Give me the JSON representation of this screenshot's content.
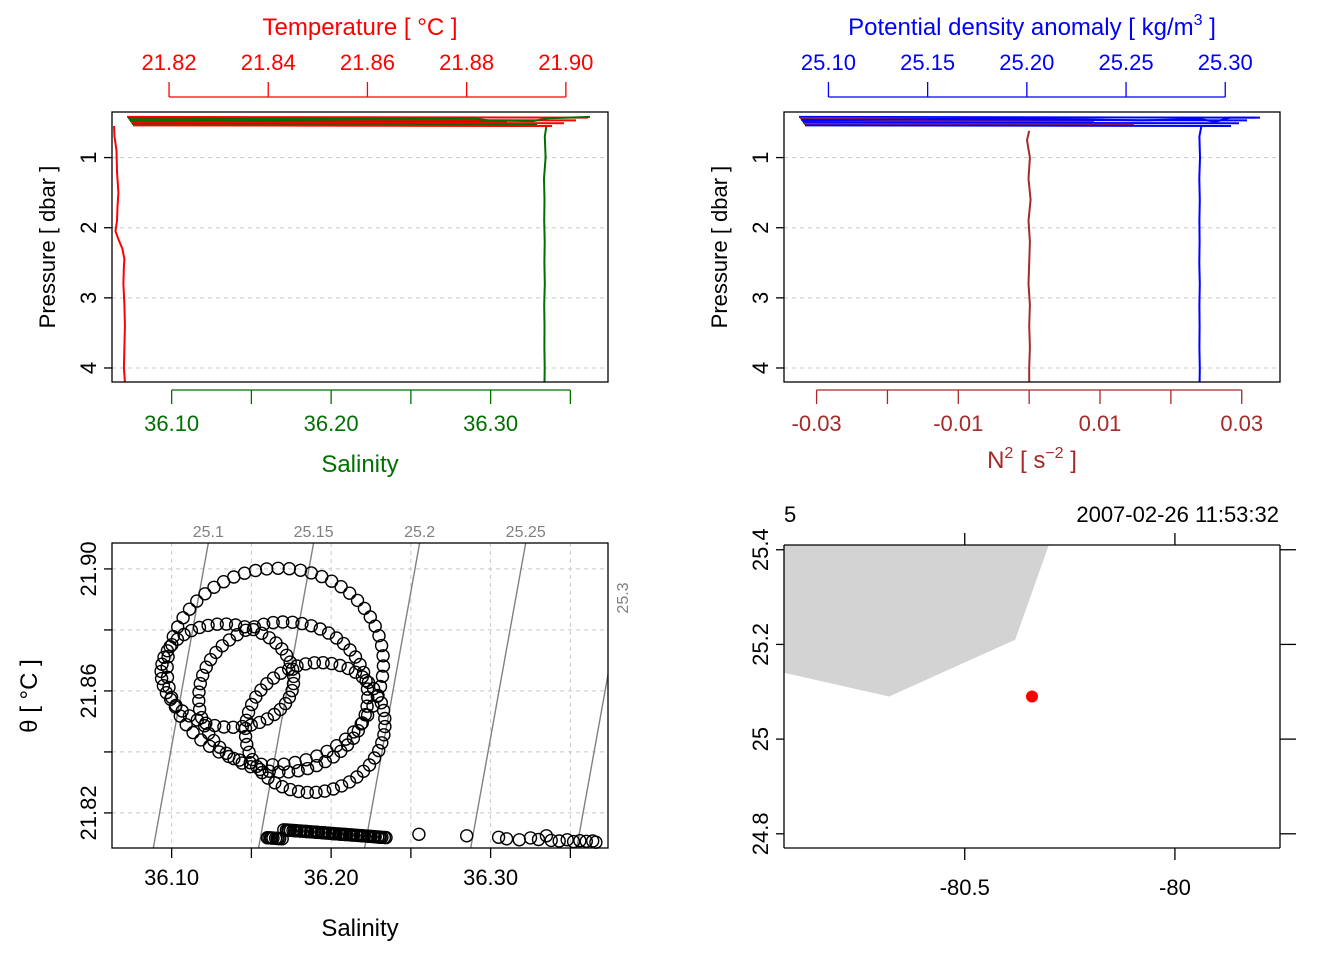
{
  "colors": {
    "temperature": "#ff0000",
    "salinity": "#007000",
    "density": "#0000ff",
    "n2": "#a52a2a",
    "grid": "#c8c8c8",
    "isopycnal": "#808080",
    "coast": "#d3d3d3",
    "station": "#ff0000"
  },
  "chart_data": [
    {
      "type": "line",
      "panel": "top-left profile",
      "ylabel": "Pressure [ dbar ]",
      "ylim": [
        4.2,
        0.35
      ],
      "yticks": [
        1,
        2,
        3,
        4
      ],
      "yticklabels": [
        "1",
        "2",
        "3",
        "4"
      ],
      "top_axis": {
        "title": "Temperature [ °C ]",
        "range": [
          21.8085,
          21.9085
        ],
        "ticks": [
          21.82,
          21.84,
          21.86,
          21.88,
          21.9
        ],
        "ticklabels": [
          "21.82",
          "21.84",
          "21.86",
          "21.88",
          "21.90"
        ]
      },
      "bottom_axis": {
        "title": "Salinity",
        "range": [
          36.0626,
          36.3736
        ],
        "ticks": [
          36.1,
          36.15,
          36.2,
          36.25,
          36.3,
          36.35
        ],
        "ticklabels": [
          "36.10",
          "",
          "36.20",
          "",
          "36.30",
          ""
        ]
      },
      "series": [
        {
          "name": "Temperature",
          "x": [
            21.8089,
            21.809,
            21.8094,
            21.8095,
            21.8098,
            21.8096,
            21.8095,
            21.8092,
            21.8097,
            21.8106,
            21.811,
            21.8109,
            21.8108,
            21.811,
            21.8111,
            21.811,
            21.8109,
            21.8111
          ],
          "y": [
            0.55,
            0.7,
            0.9,
            1.2,
            1.5,
            1.7,
            1.9,
            2.05,
            2.15,
            2.3,
            2.45,
            2.55,
            2.8,
            3.1,
            3.4,
            3.7,
            4.0,
            4.2
          ]
        },
        {
          "name": "Salinity",
          "x": [
            36.335,
            36.334,
            36.3345,
            36.3335,
            36.3338,
            36.3336,
            36.3339,
            36.3337,
            36.334,
            36.3336,
            36.3338,
            36.3337,
            36.3339,
            36.3338
          ],
          "y": [
            0.55,
            0.7,
            1.0,
            1.3,
            1.6,
            1.9,
            2.2,
            2.5,
            2.8,
            3.1,
            3.4,
            3.7,
            4.0,
            4.2
          ]
        }
      ]
    },
    {
      "type": "line",
      "panel": "top-right profile",
      "ylabel": "Pressure [ dbar ]",
      "ylim": [
        4.2,
        0.35
      ],
      "yticks": [
        1,
        2,
        3,
        4
      ],
      "yticklabels": [
        "1",
        "2",
        "3",
        "4"
      ],
      "top_axis": {
        "title": "Potential density anomaly [ kg/m",
        "title_sup": "3",
        "title_end": " ]",
        "range": [
          25.0776,
          25.3276
        ],
        "ticks": [
          25.1,
          25.15,
          25.2,
          25.25,
          25.3
        ],
        "ticklabels": [
          "25.10",
          "25.15",
          "25.20",
          "25.25",
          "25.30"
        ]
      },
      "bottom_axis": {
        "title": "N",
        "title_sup": "2",
        "title_mid": " [ s",
        "title_sup2": "−2",
        "title_end": " ]",
        "range": [
          -0.0346,
          0.0354
        ],
        "ticks": [
          -0.03,
          -0.02,
          -0.01,
          0.0,
          0.01,
          0.02,
          0.03
        ],
        "ticklabels": [
          "-0.03",
          "",
          "-0.01",
          "",
          "0.01",
          "",
          "0.03"
        ]
      },
      "series": [
        {
          "name": "Potential density anomaly",
          "x": [
            25.288,
            25.287,
            25.2873,
            25.2869,
            25.2872,
            25.287,
            25.2871,
            25.2869,
            25.2872,
            25.287,
            25.2871,
            25.287,
            25.2872,
            25.2871
          ],
          "y": [
            0.55,
            0.7,
            1.0,
            1.3,
            1.6,
            1.9,
            2.2,
            2.5,
            2.8,
            3.1,
            3.4,
            3.7,
            4.0,
            4.2
          ]
        },
        {
          "name": "N2",
          "x": [
            0.0,
            -0.0003,
            0.0001,
            -0.0001,
            0.0002,
            -0.0001,
            0.0001,
            0.0,
            -0.0001,
            0.0001,
            0.0,
            0.0001,
            0.0,
            0.0
          ],
          "y": [
            0.62,
            0.75,
            1.0,
            1.3,
            1.6,
            1.9,
            2.2,
            2.5,
            2.8,
            3.1,
            3.4,
            3.7,
            4.0,
            4.2
          ]
        }
      ]
    },
    {
      "type": "scatter",
      "panel": "TS diagram",
      "xlabel": "Salinity",
      "ylabel": "θ [ °C ]",
      "xlim": [
        36.0626,
        36.3736
      ],
      "ylim": [
        21.8085,
        21.9085
      ],
      "xticks": [
        36.1,
        36.15,
        36.2,
        36.25,
        36.3,
        36.35
      ],
      "xticklabels": [
        "36.10",
        "",
        "36.20",
        "",
        "36.30",
        ""
      ],
      "yticks": [
        21.82,
        21.84,
        21.86,
        21.88,
        21.9
      ],
      "yticklabels": [
        "21.82",
        "",
        "21.86",
        "",
        "21.90"
      ],
      "isopycnals": [
        {
          "label": "25.1",
          "s_at_top": 36.123,
          "s_at_bottom": 36.0885
        },
        {
          "label": "25.15",
          "s_at_top": 36.189,
          "s_at_bottom": 36.1545
        },
        {
          "label": "25.2",
          "s_at_top": 36.2555,
          "s_at_bottom": 36.221
        },
        {
          "label": "25.25",
          "s_at_top": 36.322,
          "s_at_bottom": 36.2875
        },
        {
          "label": "25.3",
          "s_at_top": 36.3885,
          "s_at_bottom": 36.354
        }
      ],
      "loops": [
        {
          "cs": 36.165,
          "ct": 21.868,
          "rs": 0.075,
          "rt": 0.036,
          "tilt": 0.55,
          "n": 60
        },
        {
          "cs": 36.17,
          "ct": 21.858,
          "rs": 0.06,
          "rt": 0.028,
          "tilt": 0.6,
          "n": 55
        },
        {
          "cs": 36.19,
          "ct": 21.848,
          "rs": 0.05,
          "rt": 0.025,
          "tilt": 0.65,
          "n": 50
        },
        {
          "cs": 36.135,
          "ct": 21.865,
          "rs": 0.045,
          "rt": 0.018,
          "tilt": 0.45,
          "n": 45
        }
      ],
      "bottom_cluster": {
        "s_range": [
          36.16,
          36.235
        ],
        "t_range": [
          21.8115,
          21.8145
        ],
        "n": 70
      },
      "points": [
        {
          "s": 36.255,
          "t": 21.813
        },
        {
          "s": 36.285,
          "t": 21.8125
        },
        {
          "s": 36.305,
          "t": 21.812
        },
        {
          "s": 36.31,
          "t": 21.8115
        },
        {
          "s": 36.318,
          "t": 21.8112
        },
        {
          "s": 36.325,
          "t": 21.8118
        },
        {
          "s": 36.33,
          "t": 21.8113
        },
        {
          "s": 36.335,
          "t": 21.8125
        },
        {
          "s": 36.338,
          "t": 21.811
        },
        {
          "s": 36.343,
          "t": 21.8108
        },
        {
          "s": 36.348,
          "t": 21.8112
        },
        {
          "s": 36.352,
          "t": 21.8106
        },
        {
          "s": 36.356,
          "t": 21.8109
        },
        {
          "s": 36.36,
          "t": 21.8107
        },
        {
          "s": 36.364,
          "t": 21.8108
        },
        {
          "s": 36.366,
          "t": 21.8104
        }
      ]
    },
    {
      "type": "map",
      "panel": "station map",
      "top_left_label": "5",
      "top_right_label": "2007-02-26 11:53:32",
      "xlim": [
        -80.93,
        -79.75
      ],
      "ylim": [
        24.77,
        25.41
      ],
      "xticks": [
        -80.5,
        -80
      ],
      "xticklabels": [
        "-80.5",
        "-80"
      ],
      "yticks": [
        24.8,
        25,
        25.2,
        25.4
      ],
      "yticklabels": [
        "24.8",
        "25",
        "25.2",
        "25.4"
      ],
      "coastline_lon": [
        -80.93,
        -80.3,
        -80.38,
        -80.68,
        -80.93
      ],
      "coastline_lat": [
        25.41,
        25.41,
        25.21,
        25.09,
        25.14
      ],
      "station": {
        "lon": -80.34,
        "lat": 25.09
      }
    }
  ]
}
